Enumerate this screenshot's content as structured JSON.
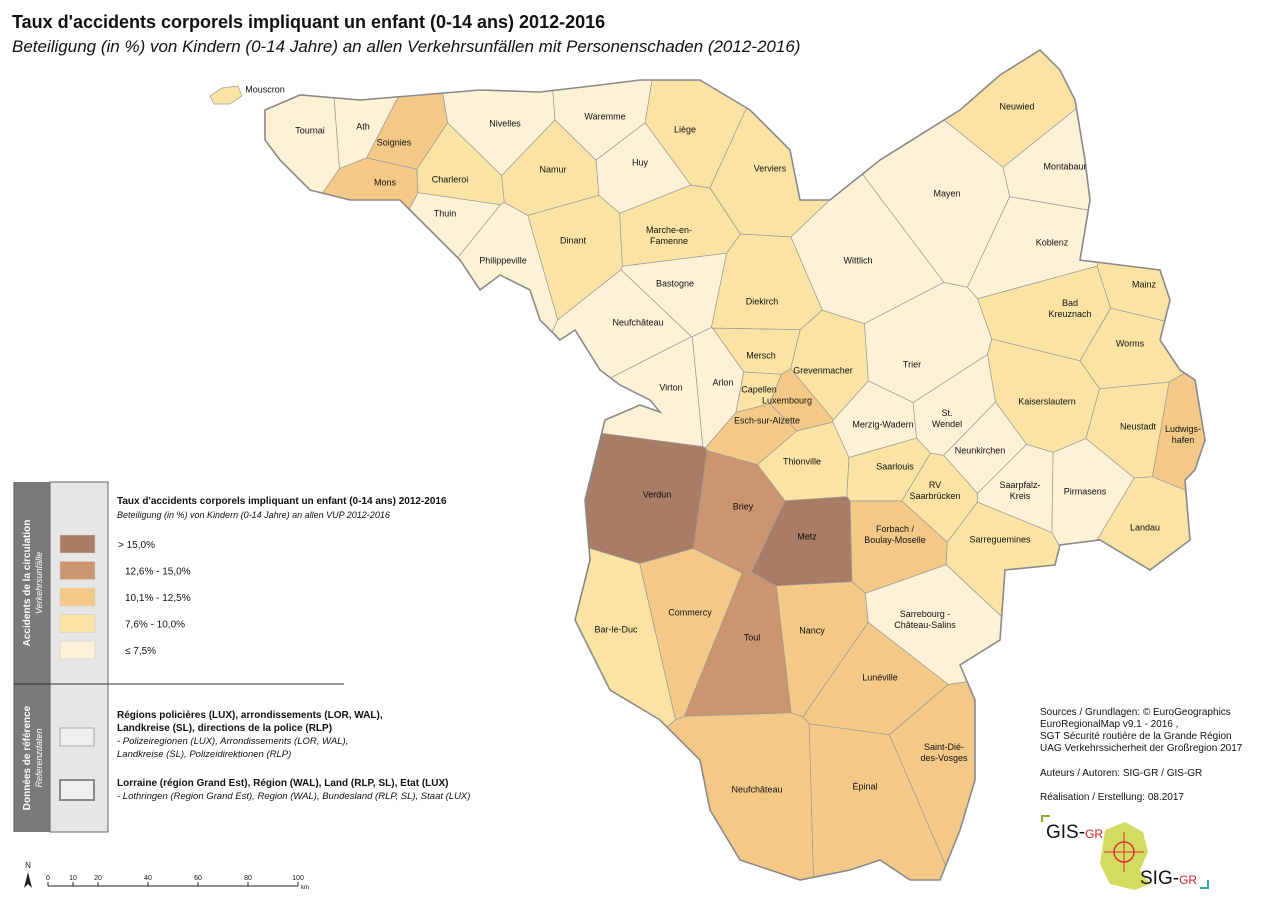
{
  "title": "Taux d'accidents corporels impliquant un enfant  (0-14 ans) 2012-2016",
  "subtitle": "Beteiligung (in %) von Kindern (0-14 Jahre) an allen Verkehrsunfällen mit Personenschaden (2012-2016)",
  "regions": [
    {
      "label": "Mouscron",
      "color": "#fbe3a3"
    },
    {
      "label": "Tournai",
      "color": "#fdf1d6"
    },
    {
      "label": "Ath",
      "color": "#fdf1d6"
    },
    {
      "label": "Nivelles",
      "color": "#fdf1d6"
    },
    {
      "label": "Waremme",
      "color": "#fdf1d6"
    },
    {
      "label": "Liège",
      "color": "#fbe3a3"
    },
    {
      "label": "Soignies",
      "color": "#f4c987"
    },
    {
      "label": "Huy",
      "color": "#fdf1d6"
    },
    {
      "label": "Namur",
      "color": "#fbe3a3"
    },
    {
      "label": "Verviers",
      "color": "#fbe3a3"
    },
    {
      "label": "Mons",
      "color": "#f4c987"
    },
    {
      "label": "Charleroi",
      "color": "#fbe3a3"
    },
    {
      "label": "Thuin",
      "color": "#fdf1d6"
    },
    {
      "label": "Dinant",
      "color": "#fbe3a3"
    },
    {
      "label": [
        "Marche-en-",
        "Famenne"
      ],
      "color": "#fbe3a3"
    },
    {
      "label": "Philippeville",
      "color": "#fdf1d6"
    },
    {
      "label": "Bastogne",
      "color": "#fdf1d6"
    },
    {
      "label": "Neufchâteau",
      "color": "#fdf1d6"
    },
    {
      "label": "Virton",
      "color": "#fdf1d6"
    },
    {
      "label": "Arlon",
      "color": "#fdf1d6"
    },
    {
      "label": "Diekirch",
      "color": "#fbe3a3"
    },
    {
      "label": "Mersch",
      "color": "#fbe3a3"
    },
    {
      "label": "Grevenmacher",
      "color": "#fbe3a3"
    },
    {
      "label": "Capellen",
      "color": "#fbe3a3"
    },
    {
      "label": "Luxembourg",
      "color": "#f4c987"
    },
    {
      "label": "Esch-sur-Alzette",
      "color": "#f4c987"
    },
    {
      "label": "Neuwied",
      "color": "#fbe3a3"
    },
    {
      "label": "Montabaur",
      "color": "#fdf1d6"
    },
    {
      "label": "Mayen",
      "color": "#fdf1d6"
    },
    {
      "label": "Koblenz",
      "color": "#fdf1d6"
    },
    {
      "label": "Wittlich",
      "color": "#fdf1d6"
    },
    {
      "label": "Mainz",
      "color": "#fbe3a3"
    },
    {
      "label": [
        "Bad",
        "Kreuznach"
      ],
      "color": "#fbe3a3"
    },
    {
      "label": "Worms",
      "color": "#fbe3a3"
    },
    {
      "label": "Trier",
      "color": "#fdf1d6"
    },
    {
      "label": "Kaiserslautern",
      "color": "#fbe3a3"
    },
    {
      "label": "Merzig-Wadern",
      "color": "#fdf1d6"
    },
    {
      "label": [
        "St.",
        "Wendel"
      ],
      "color": "#fdf1d6"
    },
    {
      "label": "Neustadt",
      "color": "#fbe3a3"
    },
    {
      "label": [
        "Ludwigs-",
        "hafen"
      ],
      "color": "#f4c987"
    },
    {
      "label": "Neunkirchen",
      "color": "#fdf1d6"
    },
    {
      "label": "Saarlouis",
      "color": "#fbe3a3"
    },
    {
      "label": "Thionville",
      "color": "#fbe3a3"
    },
    {
      "label": [
        "RV",
        "Saarbrücken"
      ],
      "color": "#fbe3a3"
    },
    {
      "label": [
        "Saarpfalz-",
        "Kreis"
      ],
      "color": "#fdf1d6"
    },
    {
      "label": "Pirmasens",
      "color": "#fdf1d6"
    },
    {
      "label": "Verdun",
      "color": "#a87c65"
    },
    {
      "label": "Briey",
      "color": "#cc9570"
    },
    {
      "label": "Metz",
      "color": "#a87c65"
    },
    {
      "label": [
        "Forbach /",
        "Boulay-Moselle"
      ],
      "color": "#f4c987"
    },
    {
      "label": "Sarreguemines",
      "color": "#fbe3a3"
    },
    {
      "label": "Landau",
      "color": "#fbe3a3"
    },
    {
      "label": "Bar-le-Duc",
      "color": "#fbe3a3"
    },
    {
      "label": "Commercy",
      "color": "#f4c987"
    },
    {
      "label": "Toul",
      "color": "#cc9570"
    },
    {
      "label": "Nancy",
      "color": "#f4c987"
    },
    {
      "label": [
        "Sarrebourg -",
        "Château-Salins"
      ],
      "color": "#fdf1d6"
    },
    {
      "label": "Lunéville",
      "color": "#f4c987"
    },
    {
      "label": [
        "Saint-Dié-",
        "des-Vosges"
      ],
      "color": "#f4c987"
    },
    {
      "label": "Neufchâteau",
      "color": "#f4c987"
    },
    {
      "label": "Épinal",
      "color": "#f4c987"
    }
  ],
  "legend": {
    "side_label": "Accidents de la circulation",
    "side_sublabel": "Verkehrsunfälle",
    "title": "Taux d'accidents corporels impliquant un enfant (0-14 ans) 2012-2016",
    "subtitle": "Beteiligung (in %) von Kindern (0-14 Jahre) an allen VUP 2012-2016",
    "classes": [
      {
        "label": "> 15,0%",
        "color": "#a87c65"
      },
      {
        "label": "12,6% - 15,0%",
        "color": "#cc9570"
      },
      {
        "label": "10,1% - 12,5%",
        "color": "#f4c987"
      },
      {
        "label": "7,6% - 10,0%",
        "color": "#fbe3a3"
      },
      {
        "label": "≤ 7,5%",
        "color": "#fdf1d6"
      }
    ],
    "ref_side_label": "Données de référence",
    "ref_side_sublabel": "Referenzdaten",
    "ref_items": [
      {
        "title": [
          "Régions policières (LUX), arrondissements (LOR, WAL),",
          "Landkreise (SL), directions de la police (RLP)"
        ],
        "subtitle": [
          "- Polizeiregionen (LUX), Arrondissements (LOR, WAL),",
          "Landkreise (SL), Polizeidirektionen (RLP)"
        ]
      },
      {
        "title": [
          "Lorraine (région Grand Est), Région (WAL), Land (RLP, SL), Etat (LUX)"
        ],
        "subtitle": [
          "- Lothringen (Region Grand Est), Region (WAL), Bundesland (RLP, SL), Staat (LUX)"
        ]
      }
    ]
  },
  "sources": [
    "Sources / Grundlagen: © EuroGeographics",
    "EuroRegionalMap v9.1 - 2016 ,",
    "SGT Sécurité routière de la Grande Région",
    "UAG Verkehrssicherheit der Großregion 2017"
  ],
  "authors": "Auteurs / Autoren: SIG-GR / GIS-GR",
  "realisation": "Réalisation / Erstellung: 08.2017",
  "logo": {
    "top": [
      "GIS-",
      "GR"
    ],
    "bottom": [
      "SIG-",
      "GR"
    ]
  },
  "north": "N",
  "scale": {
    "ticks": [
      0,
      10,
      20,
      40,
      60,
      80,
      100
    ],
    "unit": "km"
  }
}
